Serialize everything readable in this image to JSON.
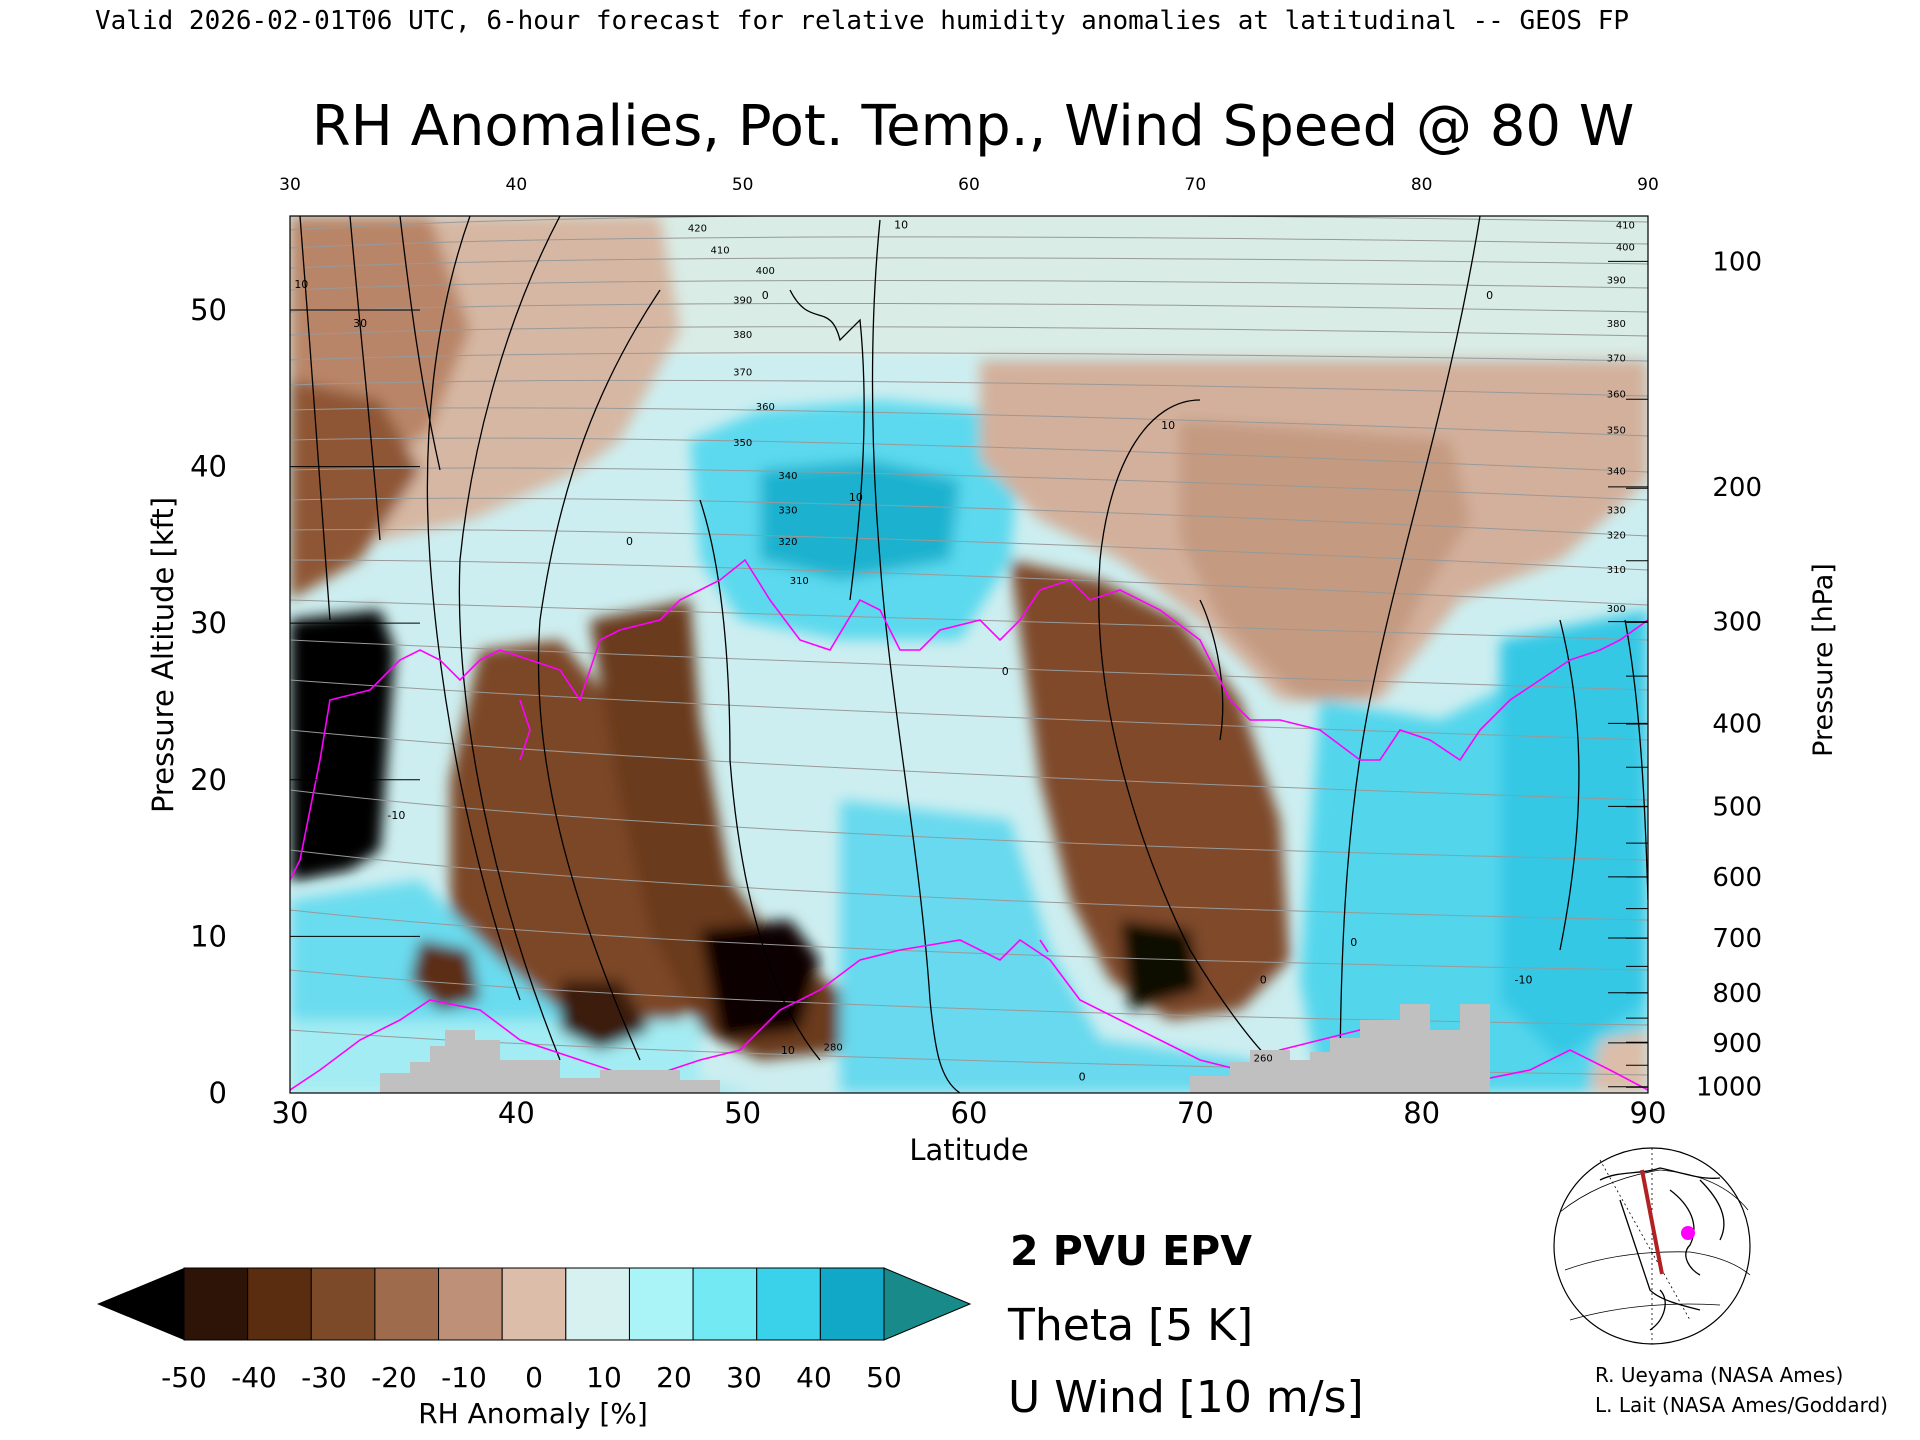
{
  "header": "Valid 2026-02-01T06 UTC, 6-hour forecast for relative humidity anomalies at latitudinal -- GEOS FP",
  "chart_data": {
    "type": "heatmap",
    "title": "RH Anomalies, Pot. Temp., Wind Speed @ 80 W",
    "xlabel": "Latitude",
    "ylabel": "Pressure Altitude [kft]",
    "ylabel_right": "Pressure [hPa]",
    "x_range": [
      30,
      90
    ],
    "y_range": [
      0,
      56
    ],
    "x_ticks": [
      "30",
      "40",
      "50",
      "60",
      "70",
      "80",
      "90"
    ],
    "y_ticks": [
      "0",
      "10",
      "20",
      "30",
      "40",
      "50"
    ],
    "pressure_ticks": [
      "100",
      "200",
      "300",
      "400",
      "500",
      "600",
      "700",
      "800",
      "900",
      "1000"
    ],
    "pressure_tick_kft": [
      53.1,
      38.7,
      30.1,
      23.6,
      18.3,
      13.8,
      9.9,
      6.4,
      3.2,
      0.4
    ],
    "theta_labels": [
      {
        "text": "420",
        "lat": 48,
        "kft": 55.0
      },
      {
        "text": "410",
        "lat": 49,
        "kft": 53.6
      },
      {
        "text": "400",
        "lat": 51,
        "kft": 52.3
      },
      {
        "text": "390",
        "lat": 50,
        "kft": 50.4
      },
      {
        "text": "380",
        "lat": 50,
        "kft": 48.2
      },
      {
        "text": "370",
        "lat": 50,
        "kft": 45.8
      },
      {
        "text": "360",
        "lat": 51,
        "kft": 43.6
      },
      {
        "text": "350",
        "lat": 50,
        "kft": 41.3
      },
      {
        "text": "340",
        "lat": 52,
        "kft": 39.2
      },
      {
        "text": "330",
        "lat": 52,
        "kft": 37.0
      },
      {
        "text": "320",
        "lat": 52,
        "kft": 35.0
      },
      {
        "text": "310",
        "lat": 52.5,
        "kft": 32.5
      },
      {
        "text": "410",
        "lat": 89,
        "kft": 55.2
      },
      {
        "text": "400",
        "lat": 89,
        "kft": 53.8
      },
      {
        "text": "390",
        "lat": 88.6,
        "kft": 51.7
      },
      {
        "text": "380",
        "lat": 88.6,
        "kft": 48.9
      },
      {
        "text": "370",
        "lat": 88.6,
        "kft": 46.7
      },
      {
        "text": "360",
        "lat": 88.6,
        "kft": 44.4
      },
      {
        "text": "350",
        "lat": 88.6,
        "kft": 42.1
      },
      {
        "text": "340",
        "lat": 88.6,
        "kft": 39.5
      },
      {
        "text": "330",
        "lat": 88.6,
        "kft": 37.0
      },
      {
        "text": "320",
        "lat": 88.6,
        "kft": 35.4
      },
      {
        "text": "310",
        "lat": 88.6,
        "kft": 33.2
      },
      {
        "text": "300",
        "lat": 88.6,
        "kft": 30.7
      },
      {
        "text": "280",
        "lat": 54,
        "kft": 2.7
      },
      {
        "text": "260",
        "lat": 73,
        "kft": 2.0
      }
    ],
    "wind_labels": [
      {
        "text": "30",
        "lat": 33.1,
        "kft": 48.9
      },
      {
        "text": "10",
        "lat": 30.5,
        "kft": 51.4
      },
      {
        "text": "10",
        "lat": 57,
        "kft": 55.2
      },
      {
        "text": "0",
        "lat": 51,
        "kft": 50.7
      },
      {
        "text": "0",
        "lat": 83,
        "kft": 50.7
      },
      {
        "text": "10",
        "lat": 68.8,
        "kft": 42.4
      },
      {
        "text": "10",
        "lat": 55,
        "kft": 37.8
      },
      {
        "text": "0",
        "lat": 45,
        "kft": 35.0
      },
      {
        "text": "0",
        "lat": 61.6,
        "kft": 26.7
      },
      {
        "text": "-10",
        "lat": 34.7,
        "kft": 17.5
      },
      {
        "text": "10",
        "lat": 52,
        "kft": 2.5
      },
      {
        "text": "0",
        "lat": 65,
        "kft": 0.8
      },
      {
        "text": "0",
        "lat": 77,
        "kft": 9.4
      },
      {
        "text": "0",
        "lat": 73,
        "kft": 7.0
      },
      {
        "text": "-10",
        "lat": 84.5,
        "kft": 7.0
      }
    ],
    "colorbar": {
      "label": "RH Anomaly [%]",
      "ticks": [
        "-50",
        "-40",
        "-30",
        "-20",
        "-10",
        "0",
        "10",
        "20",
        "30",
        "40",
        "50"
      ],
      "colors": [
        "#2e1407",
        "#5a2c10",
        "#7d4a29",
        "#9f6b4d",
        "#be9077",
        "#dcbda9",
        "#d7f1f1",
        "#aaf3f7",
        "#72e9f3",
        "#3ad2ea",
        "#10a8c6"
      ],
      "low_color": "#000000",
      "high_color": "#188a8a"
    },
    "legend": {
      "epv": "2 PVU EPV",
      "theta": "Theta [5 K]",
      "wind": "U Wind [10 m/s]",
      "epv_color": "#ff00ff",
      "theta_color": "#b3b3b3",
      "wind_color": "#000000"
    },
    "credits": [
      "R. Ueyama (NASA Ames)",
      "L. Lait (NASA Ames/Goddard)"
    ]
  }
}
